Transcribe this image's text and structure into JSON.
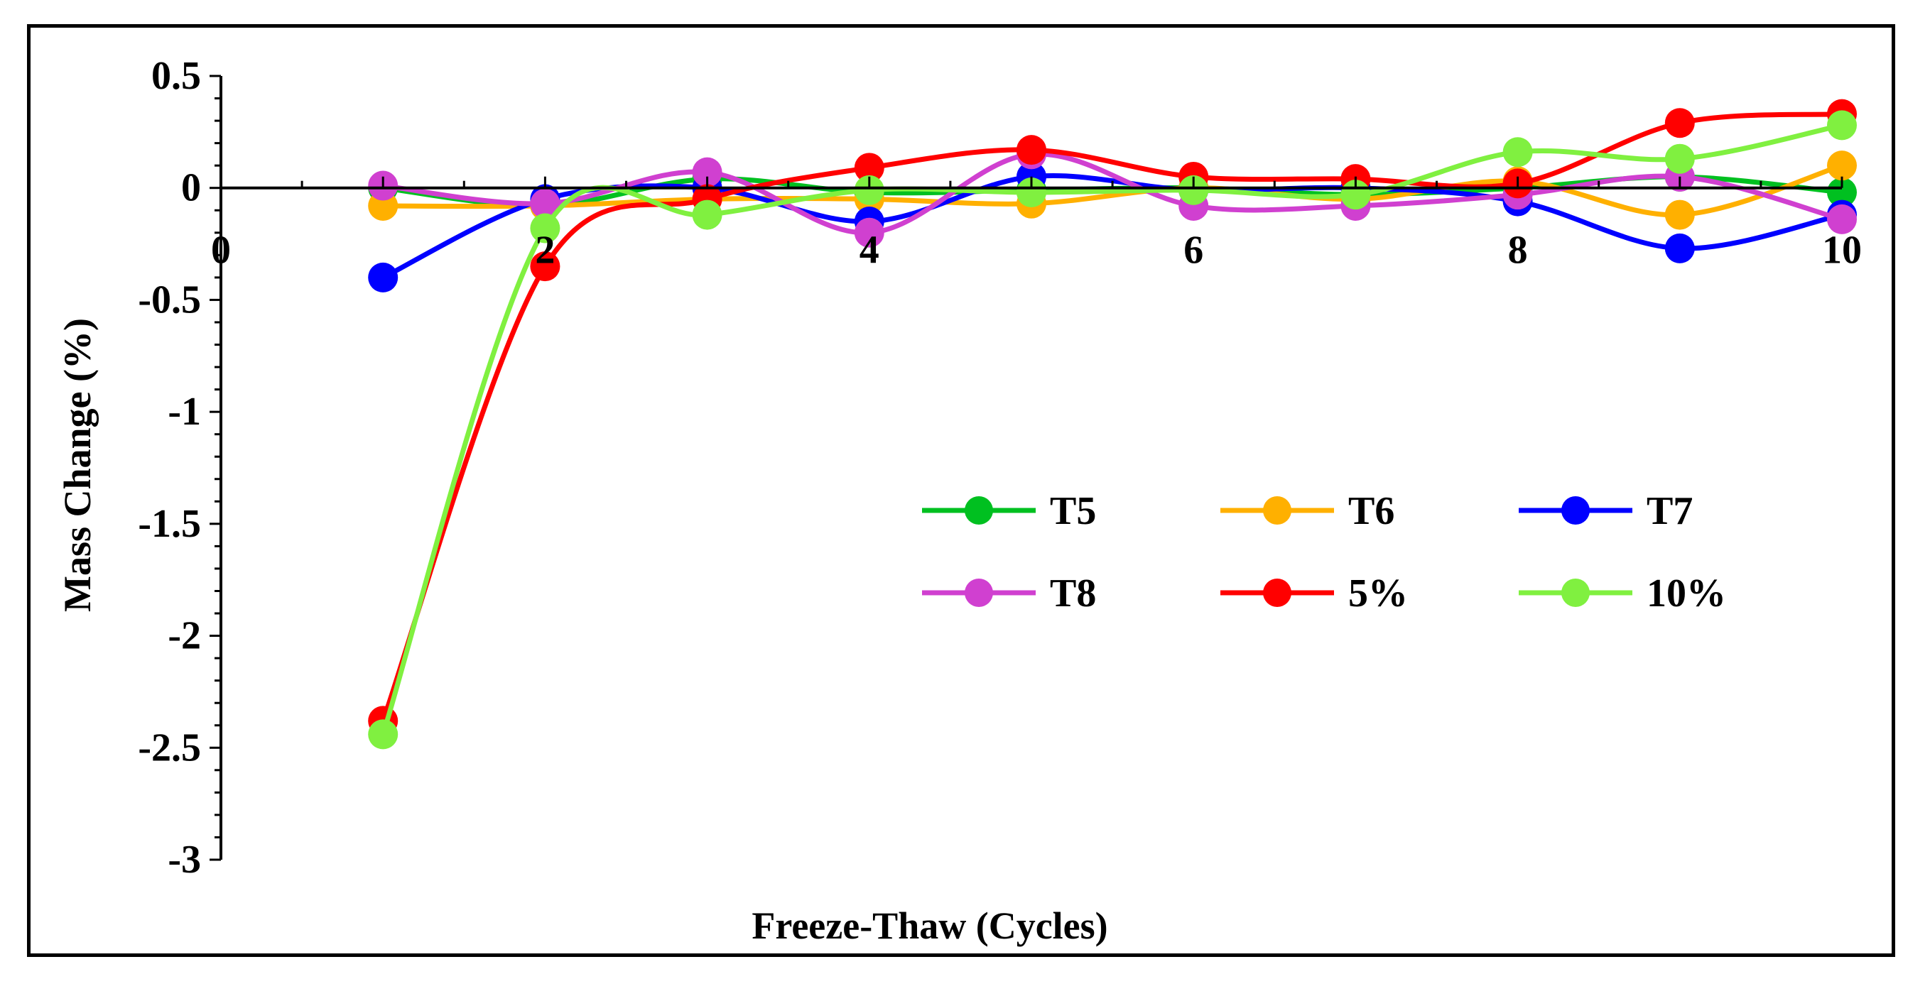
{
  "chart_data": {
    "type": "line",
    "title": "",
    "xlabel": "Freeze-Thaw (Cycles)",
    "ylabel": "Mass Change (%)",
    "xlim": [
      0,
      10
    ],
    "ylim": [
      -3,
      0.5
    ],
    "xticks": [
      0,
      2,
      4,
      6,
      8,
      10
    ],
    "xtick_labels": [
      "0",
      "2",
      "4",
      "6",
      "8",
      "10"
    ],
    "yticks": [
      0.5,
      0,
      -0.5,
      -1,
      -1.5,
      -2,
      -2.5,
      -3
    ],
    "ytick_labels": [
      "0.5",
      "0",
      "-0.5",
      "-1",
      "-1.5",
      "-2",
      "-2.5",
      "-3"
    ],
    "grid": false,
    "legend_position": "center-right",
    "x": [
      1,
      2,
      3,
      4,
      5,
      6,
      7,
      8,
      9,
      10
    ],
    "series": [
      {
        "name": "T5",
        "color": "#00c020",
        "values": [
          0.0,
          -0.08,
          0.04,
          -0.02,
          -0.01,
          0.0,
          -0.03,
          0.0,
          0.05,
          -0.02
        ]
      },
      {
        "name": "T6",
        "color": "#ffb000",
        "values": [
          -0.08,
          -0.08,
          -0.05,
          -0.05,
          -0.07,
          0.0,
          -0.05,
          0.03,
          -0.12,
          0.1
        ]
      },
      {
        "name": "T7",
        "color": "#0000ff",
        "values": [
          -0.4,
          -0.05,
          0.0,
          -0.15,
          0.05,
          -0.01,
          0.0,
          -0.06,
          -0.27,
          -0.12
        ]
      },
      {
        "name": "T8",
        "color": "#d040d0",
        "values": [
          0.01,
          -0.07,
          0.07,
          -0.2,
          0.15,
          -0.08,
          -0.08,
          -0.03,
          0.05,
          -0.14
        ]
      },
      {
        "name": "5%",
        "color": "#ff0000",
        "values": [
          -2.38,
          -0.35,
          -0.05,
          0.09,
          0.17,
          0.05,
          0.04,
          0.02,
          0.29,
          0.33
        ]
      },
      {
        "name": "10%",
        "color": "#80f040",
        "values": [
          -2.44,
          -0.18,
          -0.12,
          -0.01,
          -0.02,
          -0.01,
          -0.03,
          0.16,
          0.13,
          0.28
        ]
      }
    ]
  }
}
